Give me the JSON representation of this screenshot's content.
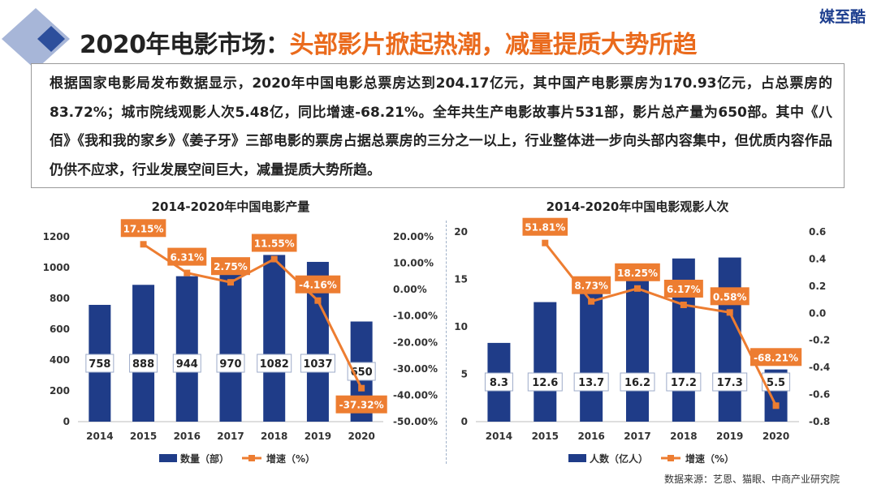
{
  "header": {
    "title_prefix": "2020年电影市场：",
    "title_highlight": "头部影片掀起热潮，减量提质大势所趋",
    "brand": "媒至酷"
  },
  "intro_text": "根据国家电影局发布数据显示，2020年中国电影总票房达到204.17亿元，其中国产电影票房为170.93亿元，占总票房的83.72%；城市院线观影人次5.48亿，同比增速-68.21%。全年共生产电影故事片531部，影片总产量为650部。其中《八佰》《我和我的家乡》《姜子牙》三部电影的票房占据总票房的三分之一以上，行业整体进一步向头部内容集中，但优质内容作品仍供不应求，行业发展空间巨大，减量提质大势所趋。",
  "source": "数据来源：艺恩、猫眼、中商产业研究院",
  "colors": {
    "bar": "#1f3c88",
    "line": "#ed7d31",
    "title_accent": "#ea6a1c",
    "deco": "#3f5fa8"
  },
  "chart_data": [
    {
      "type": "bar",
      "title": "2014-2020年中国电影产量",
      "categories": [
        "2014",
        "2015",
        "2016",
        "2017",
        "2018",
        "2019",
        "2020"
      ],
      "series": [
        {
          "name": "数量（部）",
          "axis": "left",
          "type": "bar",
          "values": [
            758,
            888,
            944,
            970,
            1082,
            1037,
            650
          ],
          "labels": [
            "758",
            "888",
            "944",
            "970",
            "1082",
            "1037",
            "650"
          ]
        },
        {
          "name": "增速（%）",
          "axis": "right",
          "type": "line",
          "values": [
            null,
            17.15,
            6.31,
            2.75,
            11.55,
            -4.16,
            -37.32
          ],
          "labels": [
            "",
            "17.15%",
            "6.31%",
            "2.75%",
            "11.55%",
            "-4.16%",
            "-37.32%"
          ]
        }
      ],
      "ylim": [
        0,
        1200
      ],
      "yticks": [
        "0",
        "200",
        "400",
        "600",
        "800",
        "1000",
        "1200"
      ],
      "y2lim": [
        -50,
        20
      ],
      "y2ticks": [
        "-50.00%",
        "-40.00%",
        "-30.00%",
        "-20.00%",
        "-10.00%",
        "0.00%",
        "10.00%",
        "20.00%"
      ],
      "legend_position": "bottom"
    },
    {
      "type": "bar",
      "title": "2014-2020年中国电影观影人次",
      "categories": [
        "2014",
        "2015",
        "2016",
        "2017",
        "2018",
        "2019",
        "2020"
      ],
      "series": [
        {
          "name": "人数（亿人）",
          "axis": "left",
          "type": "bar",
          "values": [
            8.3,
            12.6,
            13.7,
            16.2,
            17.2,
            17.3,
            5.5
          ],
          "labels": [
            "8.3",
            "12.6",
            "13.7",
            "16.2",
            "17.2",
            "17.3",
            "5.5"
          ]
        },
        {
          "name": "增速（%）",
          "axis": "right",
          "type": "line",
          "values": [
            null,
            0.5181,
            0.0873,
            0.1825,
            0.0617,
            0.0058,
            -0.6821
          ],
          "labels": [
            "",
            "51.81%",
            "8.73%",
            "18.25%",
            "6.17%",
            "0.58%",
            "-68.21%"
          ]
        }
      ],
      "ylim": [
        0,
        20
      ],
      "yticks": [
        "0",
        "5",
        "10",
        "15",
        "20"
      ],
      "y2lim": [
        -0.8,
        0.6
      ],
      "y2ticks": [
        "-0.8",
        "-0.6",
        "-0.4",
        "-0.2",
        "0.0",
        "0.2",
        "0.4",
        "0.6"
      ],
      "legend_position": "bottom"
    }
  ]
}
